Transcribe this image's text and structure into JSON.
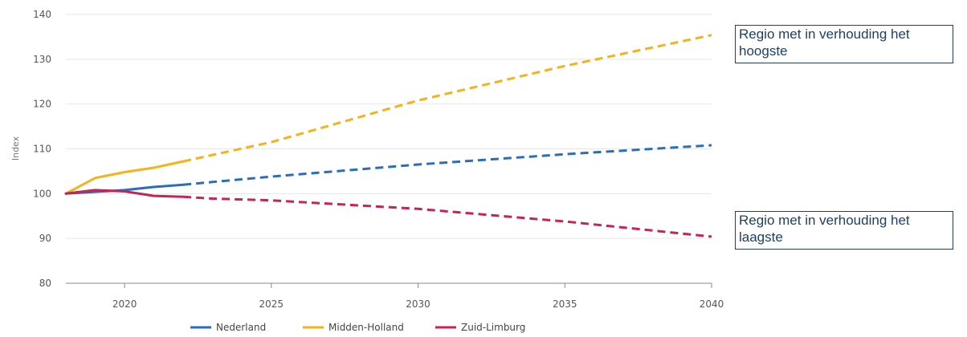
{
  "chart_data": {
    "type": "line",
    "title": "",
    "xlabel": "",
    "ylabel": "Index",
    "xlim": [
      2018,
      2040
    ],
    "ylim": [
      80,
      140
    ],
    "x_ticks": [
      2020,
      2025,
      2030,
      2035,
      2040
    ],
    "y_ticks": [
      80,
      90,
      100,
      110,
      120,
      130,
      140
    ],
    "grid": "horizontal",
    "legend_position": "bottom",
    "projection_style": "dashed after 2022",
    "series": [
      {
        "name": "Nederland",
        "color": "#2a6ebb",
        "observed": [
          [
            2018,
            100.0
          ],
          [
            2019,
            100.4
          ],
          [
            2020,
            100.8
          ],
          [
            2021,
            101.5
          ],
          [
            2022,
            102.0
          ]
        ],
        "projected": [
          [
            2022,
            102.0
          ],
          [
            2023,
            102.6
          ],
          [
            2025,
            103.8
          ],
          [
            2030,
            106.5
          ],
          [
            2035,
            108.8
          ],
          [
            2040,
            110.8
          ]
        ]
      },
      {
        "name": "Midden-Holland",
        "color": "#f6b21b",
        "observed": [
          [
            2018,
            100.0
          ],
          [
            2019,
            103.5
          ],
          [
            2020,
            104.8
          ],
          [
            2021,
            105.8
          ],
          [
            2022,
            107.2
          ]
        ],
        "projected": [
          [
            2022,
            107.2
          ],
          [
            2025,
            111.5
          ],
          [
            2030,
            120.8
          ],
          [
            2035,
            128.5
          ],
          [
            2040,
            135.4
          ]
        ]
      },
      {
        "name": "Zuid-Limburg",
        "color": "#c4245a",
        "observed": [
          [
            2018,
            100.0
          ],
          [
            2019,
            100.8
          ],
          [
            2020,
            100.5
          ],
          [
            2021,
            99.5
          ],
          [
            2022,
            99.3
          ]
        ],
        "projected": [
          [
            2022,
            99.3
          ],
          [
            2023,
            98.9
          ],
          [
            2025,
            98.5
          ],
          [
            2030,
            96.6
          ],
          [
            2035,
            93.8
          ],
          [
            2040,
            90.4
          ]
        ]
      }
    ]
  },
  "annotations": {
    "high": "Regio met in verhouding het hoogste",
    "low": "Regio met in verhouding het laagste"
  }
}
